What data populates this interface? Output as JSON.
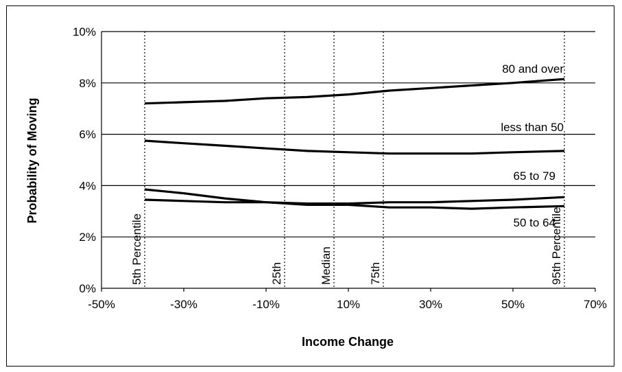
{
  "chart_data": {
    "type": "line",
    "xlabel": "Income Change",
    "ylabel": "Probability of Moving",
    "xlim": [
      -50,
      70
    ],
    "ylim": [
      0,
      10
    ],
    "x_ticks": [
      "-50%",
      "-30%",
      "-10%",
      "10%",
      "30%",
      "50%",
      "70%"
    ],
    "x_tick_values": [
      -50,
      -30,
      -10,
      10,
      30,
      50,
      70
    ],
    "y_ticks": [
      "0%",
      "2%",
      "4%",
      "6%",
      "8%",
      "10%"
    ],
    "y_tick_values": [
      0,
      2,
      4,
      6,
      8,
      10
    ],
    "grid": "horizontal",
    "percentile_lines": [
      {
        "label": "5th Percentile",
        "x": -39.5
      },
      {
        "label": "25th",
        "x": -5.5
      },
      {
        "label": "Median",
        "x": 6.5
      },
      {
        "label": "75th",
        "x": 18.5
      },
      {
        "label": "95th Percentile",
        "x": 62.5
      }
    ],
    "series": [
      {
        "name": "80 and over",
        "x": [
          -39.5,
          -30,
          -20,
          -10,
          0,
          10,
          20,
          30,
          40,
          50,
          62.5
        ],
        "values": [
          7.2,
          7.25,
          7.3,
          7.4,
          7.45,
          7.55,
          7.7,
          7.8,
          7.9,
          8.0,
          8.15
        ]
      },
      {
        "name": "less than 50",
        "x": [
          -39.5,
          -30,
          -20,
          -10,
          0,
          10,
          20,
          30,
          40,
          50,
          62.5
        ],
        "values": [
          5.75,
          5.65,
          5.55,
          5.45,
          5.35,
          5.3,
          5.25,
          5.25,
          5.25,
          5.3,
          5.35
        ]
      },
      {
        "name": "65 to 79",
        "x": [
          -39.5,
          -30,
          -20,
          -10,
          0,
          10,
          20,
          30,
          40,
          50,
          62.5
        ],
        "values": [
          3.45,
          3.4,
          3.35,
          3.35,
          3.3,
          3.3,
          3.35,
          3.35,
          3.4,
          3.45,
          3.55
        ]
      },
      {
        "name": "50 to 64",
        "x": [
          -39.5,
          -30,
          -20,
          -10,
          0,
          10,
          20,
          30,
          40,
          50,
          62.5
        ],
        "values": [
          3.85,
          3.7,
          3.5,
          3.35,
          3.25,
          3.25,
          3.15,
          3.15,
          3.1,
          3.15,
          3.2
        ]
      }
    ]
  }
}
